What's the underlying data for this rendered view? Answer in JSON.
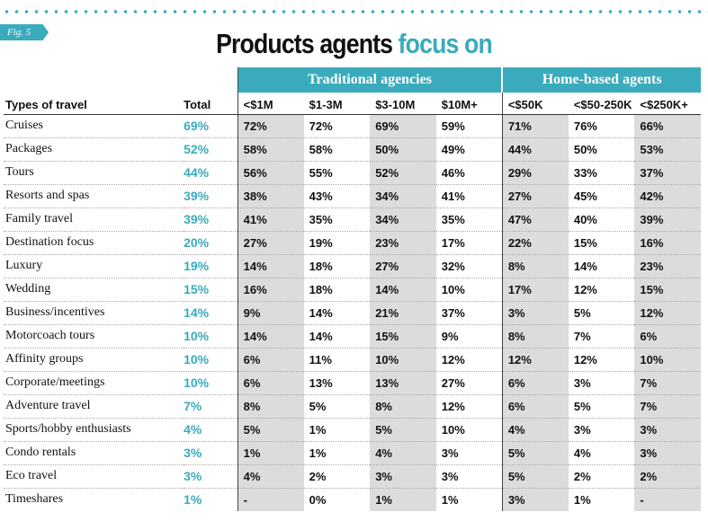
{
  "figure_label": "Fig. 5",
  "title_main": "Products agents",
  "title_accent": "focus on",
  "colors": {
    "accent": "#3aabbc",
    "shade": "#dcdcdc"
  },
  "chart_data": {
    "type": "table",
    "groups": [
      {
        "name": "Traditional agencies",
        "columns": [
          "<$1M",
          "$1-3M",
          "$3-10M",
          "$10M+"
        ]
      },
      {
        "name": "Home-based agents",
        "columns": [
          "<$50K",
          "<$50-250K",
          "<$250K+"
        ]
      }
    ],
    "header_type": "Types of travel",
    "header_total": "Total",
    "columns": [
      "<$1M",
      "$1-3M",
      "$3-10M",
      "$10M+",
      "<$50K",
      "<$50-250K",
      "<$250K+"
    ],
    "rows": [
      {
        "type": "Cruises",
        "total": "69%",
        "values": [
          "72%",
          "72%",
          "69%",
          "59%",
          "71%",
          "76%",
          "66%"
        ]
      },
      {
        "type": "Packages",
        "total": "52%",
        "values": [
          "58%",
          "58%",
          "50%",
          "49%",
          "44%",
          "50%",
          "53%"
        ]
      },
      {
        "type": "Tours",
        "total": "44%",
        "values": [
          "56%",
          "55%",
          "52%",
          "46%",
          "29%",
          "33%",
          "37%"
        ]
      },
      {
        "type": "Resorts and spas",
        "total": "39%",
        "values": [
          "38%",
          "43%",
          "34%",
          "41%",
          "27%",
          "45%",
          "42%"
        ]
      },
      {
        "type": "Family travel",
        "total": "39%",
        "values": [
          "41%",
          "35%",
          "34%",
          "35%",
          "47%",
          "40%",
          "39%"
        ]
      },
      {
        "type": "Destination focus",
        "total": "20%",
        "values": [
          "27%",
          "19%",
          "23%",
          "17%",
          "22%",
          "15%",
          "16%"
        ]
      },
      {
        "type": "Luxury",
        "total": "19%",
        "values": [
          "14%",
          "18%",
          "27%",
          "32%",
          "8%",
          "14%",
          "23%"
        ]
      },
      {
        "type": "Wedding",
        "total": "15%",
        "values": [
          "16%",
          "18%",
          "14%",
          "10%",
          "17%",
          "12%",
          "15%"
        ]
      },
      {
        "type": "Business/incentives",
        "total": "14%",
        "values": [
          "9%",
          "14%",
          "21%",
          "37%",
          "3%",
          "5%",
          "12%"
        ]
      },
      {
        "type": "Motorcoach tours",
        "total": "10%",
        "values": [
          "14%",
          "14%",
          "15%",
          "9%",
          "8%",
          "7%",
          "6%"
        ]
      },
      {
        "type": "Affinity groups",
        "total": "10%",
        "values": [
          "6%",
          "11%",
          "10%",
          "12%",
          "12%",
          "12%",
          "10%"
        ]
      },
      {
        "type": "Corporate/meetings",
        "total": "10%",
        "values": [
          "6%",
          "13%",
          "13%",
          "27%",
          "6%",
          "3%",
          "7%"
        ]
      },
      {
        "type": "Adventure travel",
        "total": "7%",
        "values": [
          "8%",
          "5%",
          "8%",
          "12%",
          "6%",
          "5%",
          "7%"
        ]
      },
      {
        "type": "Sports/hobby enthusiasts",
        "total": "4%",
        "values": [
          "5%",
          "1%",
          "5%",
          "10%",
          "4%",
          "3%",
          "3%"
        ]
      },
      {
        "type": "Condo rentals",
        "total": "3%",
        "values": [
          "1%",
          "1%",
          "4%",
          "3%",
          "5%",
          "4%",
          "3%"
        ]
      },
      {
        "type": "Eco travel",
        "total": "3%",
        "values": [
          "4%",
          "2%",
          "3%",
          "3%",
          "5%",
          "2%",
          "2%"
        ]
      },
      {
        "type": "Timeshares",
        "total": "1%",
        "values": [
          "-",
          "0%",
          "1%",
          "1%",
          "3%",
          "1%",
          "-"
        ]
      }
    ]
  }
}
